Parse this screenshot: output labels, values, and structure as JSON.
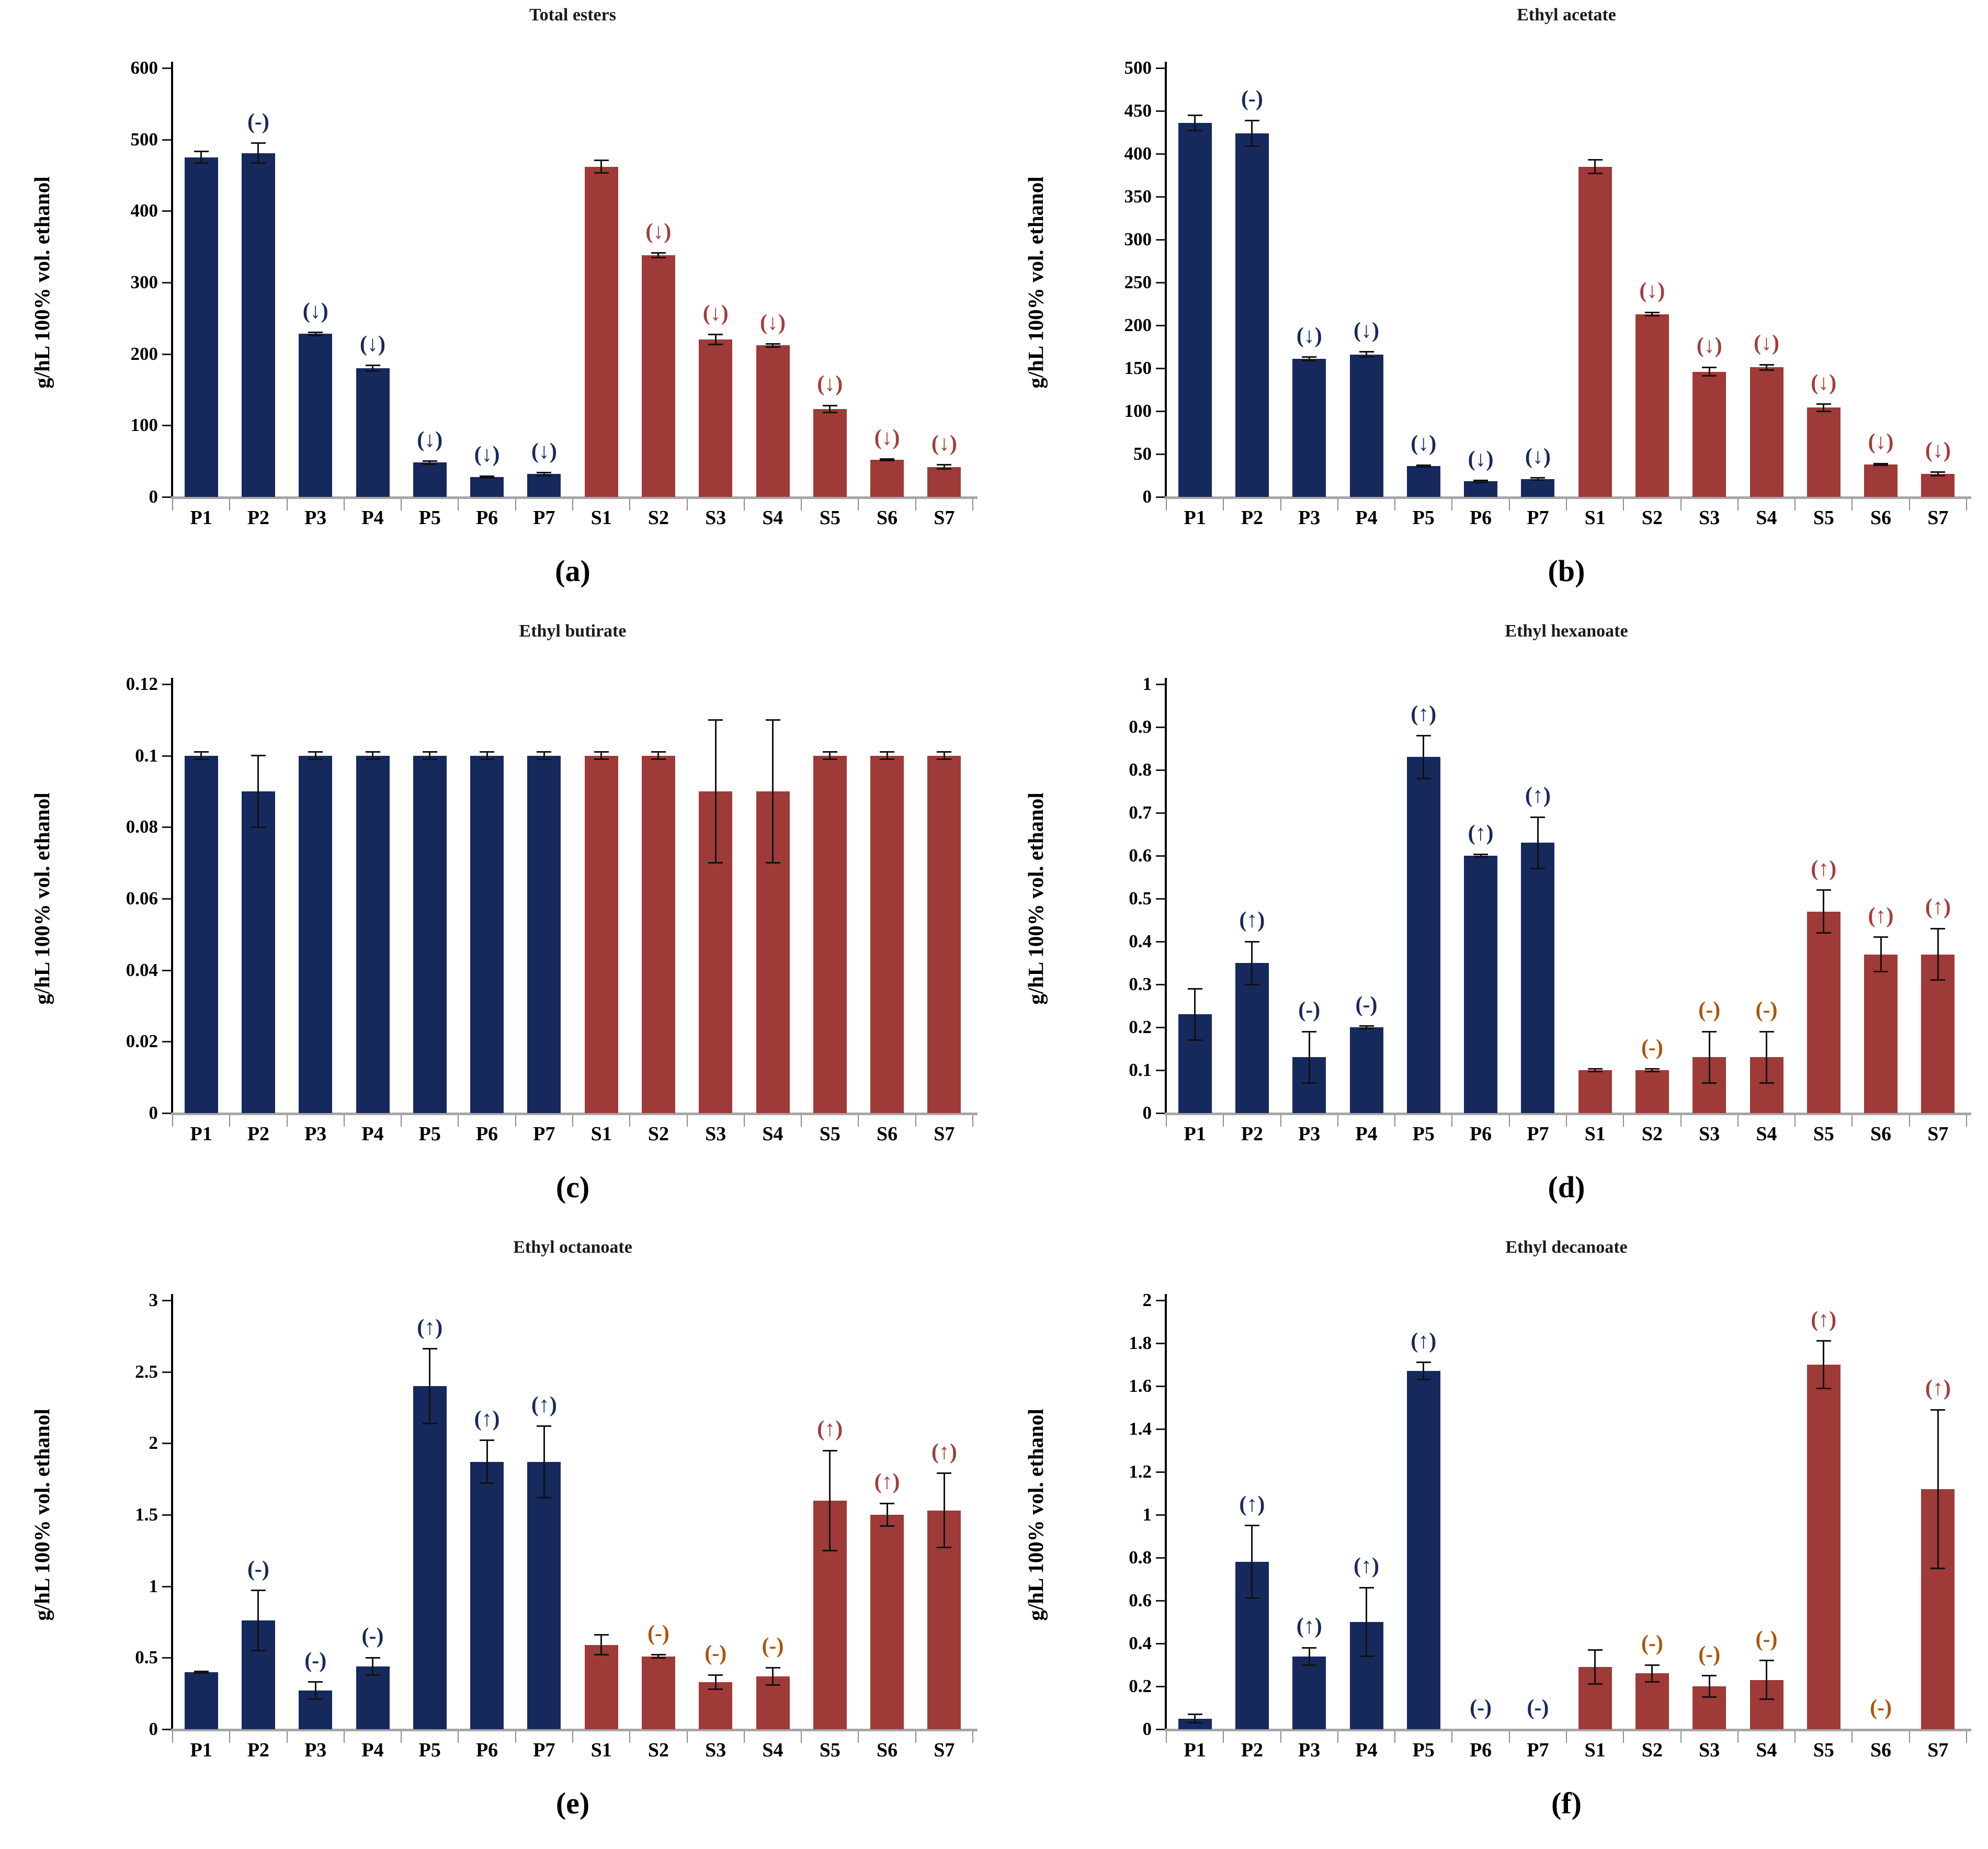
{
  "figure": {
    "background": "#ffffff"
  },
  "style": {
    "p_bar_color": "#16295c",
    "s_bar_color": "#9e3a37",
    "note_blue": "#16295c",
    "note_red": "#a33d39",
    "note_orange": "#ad5408",
    "axis_color": "#000000",
    "baseline_color": "#a6a6a6",
    "xtick_color": "#8c8c8c",
    "error_color": "#111111"
  },
  "ylabel": "g/hL 100% vol. ethanol",
  "chart_data": [
    {
      "type": "bar",
      "id": "a",
      "caption": "(a)",
      "title": "Total esters",
      "xlabel": "",
      "ylabel": "g/hL 100% vol. ethanol",
      "ylim": [
        0,
        600
      ],
      "ytick": 100,
      "grid": false,
      "legend": "none",
      "categories": [
        "P1",
        "P2",
        "P3",
        "P4",
        "P5",
        "P6",
        "P7",
        "S1",
        "S2",
        "S3",
        "S4",
        "S5",
        "S6",
        "S7"
      ],
      "values": [
        475,
        481,
        228,
        180,
        48,
        28,
        32,
        462,
        338,
        220,
        212,
        123,
        52,
        42
      ],
      "errors": [
        8,
        14,
        2,
        4,
        2,
        1,
        2,
        9,
        3,
        7,
        2,
        5,
        1,
        3
      ],
      "annotations": [
        null,
        "(-)",
        "(↓)",
        "(↓)",
        "(↓)",
        "(↓)",
        "(↓)",
        null,
        "(↓)",
        "(↓)",
        "(↓)",
        "(↓)",
        "(↓)",
        "(↓)"
      ],
      "annotation_colors": [
        null,
        "blue",
        "blue",
        "blue",
        "blue",
        "blue",
        "blue",
        null,
        "red",
        "red",
        "red",
        "red",
        "red",
        "red"
      ]
    },
    {
      "type": "bar",
      "id": "b",
      "caption": "(b)",
      "title": "Ethyl acetate",
      "xlabel": "",
      "ylabel": "g/hL 100% vol. ethanol",
      "ylim": [
        0,
        500
      ],
      "ytick": 50,
      "grid": false,
      "legend": "none",
      "categories": [
        "P1",
        "P2",
        "P3",
        "P4",
        "P5",
        "P6",
        "P7",
        "S1",
        "S2",
        "S3",
        "S4",
        "S5",
        "S6",
        "S7"
      ],
      "values": [
        436,
        424,
        161,
        166,
        36,
        18,
        21,
        385,
        213,
        146,
        151,
        104,
        38,
        27
      ],
      "errors": [
        9,
        15,
        2,
        3,
        1,
        1,
        1,
        8,
        2,
        5,
        3,
        4,
        1,
        2
      ],
      "annotations": [
        null,
        "(-)",
        "(↓)",
        "(↓)",
        "(↓)",
        "(↓)",
        "(↓)",
        null,
        "(↓)",
        "(↓)",
        "(↓)",
        "(↓)",
        "(↓)",
        "(↓)"
      ],
      "annotation_colors": [
        null,
        "blue",
        "blue",
        "blue",
        "blue",
        "blue",
        "blue",
        null,
        "red",
        "red",
        "red",
        "red",
        "red",
        "red"
      ]
    },
    {
      "type": "bar",
      "id": "c",
      "caption": "(c)",
      "title": "Ethyl butirate",
      "xlabel": "",
      "ylabel": "g/hL 100% vol. ethanol",
      "ylim": [
        0,
        0.12
      ],
      "ytick": 0.02,
      "grid": false,
      "legend": "none",
      "categories": [
        "P1",
        "P2",
        "P3",
        "P4",
        "P5",
        "P6",
        "P7",
        "S1",
        "S2",
        "S3",
        "S4",
        "S5",
        "S6",
        "S7"
      ],
      "values": [
        0.1,
        0.09,
        0.1,
        0.1,
        0.1,
        0.1,
        0.1,
        0.1,
        0.1,
        0.09,
        0.09,
        0.1,
        0.1,
        0.1
      ],
      "errors": [
        0.001,
        0.01,
        0.001,
        0.001,
        0.001,
        0.001,
        0.001,
        0.001,
        0.001,
        0.02,
        0.02,
        0.001,
        0.001,
        0.001
      ],
      "annotations": [
        null,
        null,
        null,
        null,
        null,
        null,
        null,
        null,
        null,
        null,
        null,
        null,
        null,
        null
      ],
      "annotation_colors": [
        null,
        null,
        null,
        null,
        null,
        null,
        null,
        null,
        null,
        null,
        null,
        null,
        null,
        null
      ]
    },
    {
      "type": "bar",
      "id": "d",
      "caption": "(d)",
      "title": "Ethyl hexanoate",
      "xlabel": "",
      "ylabel": "g/hL 100% vol. ethanol",
      "ylim": [
        0,
        1
      ],
      "ytick": 0.1,
      "grid": false,
      "legend": "none",
      "categories": [
        "P1",
        "P2",
        "P3",
        "P4",
        "P5",
        "P6",
        "P7",
        "S1",
        "S2",
        "S3",
        "S4",
        "S5",
        "S6",
        "S7"
      ],
      "values": [
        0.23,
        0.35,
        0.13,
        0.2,
        0.83,
        0.6,
        0.63,
        0.1,
        0.1,
        0.13,
        0.13,
        0.47,
        0.37,
        0.37
      ],
      "errors": [
        0.06,
        0.05,
        0.06,
        0.003,
        0.05,
        0.003,
        0.06,
        0.003,
        0.003,
        0.06,
        0.06,
        0.05,
        0.04,
        0.06
      ],
      "annotations": [
        null,
        "(↑)",
        "(-)",
        "(-)",
        "(↑)",
        "(↑)",
        "(↑)",
        null,
        "(-)",
        "(-)",
        "(-)",
        "(↑)",
        "(↑)",
        "(↑)"
      ],
      "annotation_colors": [
        null,
        "blue",
        "blue",
        "blue",
        "blue",
        "blue",
        "blue",
        null,
        "orange",
        "orange",
        "orange",
        "red",
        "red",
        "red"
      ]
    },
    {
      "type": "bar",
      "id": "e",
      "caption": "(e)",
      "title": "Ethyl octanoate",
      "xlabel": "",
      "ylabel": "g/hL 100% vol. ethanol",
      "ylim": [
        0,
        3
      ],
      "ytick": 0.5,
      "grid": false,
      "legend": "none",
      "categories": [
        "P1",
        "P2",
        "P3",
        "P4",
        "P5",
        "P6",
        "P7",
        "S1",
        "S2",
        "S3",
        "S4",
        "S5",
        "S6",
        "S7"
      ],
      "values": [
        0.4,
        0.76,
        0.27,
        0.44,
        2.4,
        1.87,
        1.87,
        0.59,
        0.51,
        0.33,
        0.37,
        1.6,
        1.5,
        1.53
      ],
      "errors": [
        0.005,
        0.21,
        0.06,
        0.06,
        0.26,
        0.15,
        0.25,
        0.07,
        0.01,
        0.05,
        0.06,
        0.35,
        0.08,
        0.26
      ],
      "annotations": [
        null,
        "(-)",
        "(-)",
        "(-)",
        "(↑)",
        "(↑)",
        "(↑)",
        null,
        "(-)",
        "(-)",
        "(-)",
        "(↑)",
        "(↑)",
        "(↑)"
      ],
      "annotation_colors": [
        null,
        "blue",
        "blue",
        "blue",
        "blue",
        "blue",
        "blue",
        null,
        "orange",
        "orange",
        "orange",
        "red",
        "red",
        "red"
      ]
    },
    {
      "type": "bar",
      "id": "f",
      "caption": "(f)",
      "title": "Ethyl decanoate",
      "xlabel": "",
      "ylabel": "g/hL 100% vol. ethanol",
      "ylim": [
        0,
        2
      ],
      "ytick": 0.2,
      "grid": false,
      "legend": "none",
      "categories": [
        "P1",
        "P2",
        "P3",
        "P4",
        "P5",
        "P6",
        "P7",
        "S1",
        "S2",
        "S3",
        "S4",
        "S5",
        "S6",
        "S7"
      ],
      "values": [
        0.05,
        0.78,
        0.34,
        0.5,
        1.67,
        0,
        0,
        0.29,
        0.26,
        0.2,
        0.23,
        1.7,
        0,
        1.12
      ],
      "errors": [
        0.02,
        0.17,
        0.04,
        0.16,
        0.04,
        0,
        0,
        0.08,
        0.04,
        0.05,
        0.09,
        0.11,
        0,
        0.37
      ],
      "annotations": [
        null,
        "(↑)",
        "(↑)",
        "(↑)",
        "(↑)",
        "(-)",
        "(-)",
        null,
        "(-)",
        "(-)",
        "(-)",
        "(↑)",
        "(-)",
        "(↑)"
      ],
      "annotation_colors": [
        null,
        "blue",
        "blue",
        "blue",
        "blue",
        "blue",
        "blue",
        null,
        "orange",
        "orange",
        "orange",
        "red",
        "orange",
        "red"
      ]
    }
  ]
}
